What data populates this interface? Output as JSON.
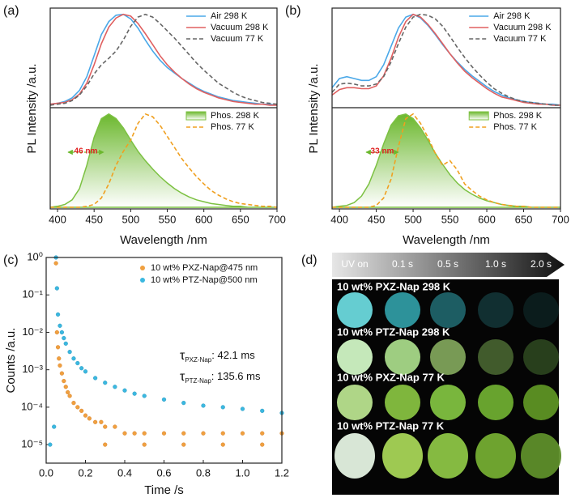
{
  "chart_data": [
    {
      "type": "spectra",
      "panel_label": "(a)",
      "xlabel": "Wavelength /nm",
      "ylabel": "PL Intensity /a.u.",
      "xlim": [
        390,
        700
      ],
      "xticks": [
        400,
        450,
        500,
        550,
        600,
        650,
        700
      ],
      "ylim": [
        0,
        1.05
      ],
      "x": [
        390,
        400,
        410,
        420,
        430,
        440,
        450,
        460,
        470,
        480,
        490,
        500,
        510,
        520,
        530,
        540,
        550,
        560,
        570,
        580,
        590,
        600,
        610,
        620,
        630,
        640,
        650,
        660,
        670,
        680,
        690,
        700
      ],
      "top": {
        "series": [
          {
            "name": "Air 298 K",
            "color": "#4aa8e8",
            "style": "solid",
            "values": [
              0.02,
              0.03,
              0.05,
              0.09,
              0.17,
              0.32,
              0.55,
              0.78,
              0.92,
              0.99,
              1.0,
              0.95,
              0.85,
              0.72,
              0.6,
              0.5,
              0.42,
              0.36,
              0.3,
              0.25,
              0.2,
              0.16,
              0.13,
              0.1,
              0.08,
              0.06,
              0.05,
              0.04,
              0.03,
              0.02,
              0.02,
              0.01
            ]
          },
          {
            "name": "Vacuum 298 K",
            "color": "#e06060",
            "style": "solid",
            "values": [
              0.02,
              0.03,
              0.04,
              0.07,
              0.13,
              0.25,
              0.45,
              0.68,
              0.86,
              0.96,
              1.0,
              0.98,
              0.9,
              0.79,
              0.67,
              0.55,
              0.45,
              0.37,
              0.3,
              0.24,
              0.19,
              0.15,
              0.12,
              0.09,
              0.07,
              0.05,
              0.04,
              0.03,
              0.02,
              0.02,
              0.01,
              0.01
            ]
          },
          {
            "name": "Vacuum 77 K",
            "color": "#666666",
            "style": "dashed",
            "values": [
              0.01,
              0.02,
              0.03,
              0.06,
              0.12,
              0.22,
              0.35,
              0.45,
              0.52,
              0.6,
              0.72,
              0.87,
              0.97,
              1.0,
              0.97,
              0.9,
              0.82,
              0.74,
              0.65,
              0.56,
              0.47,
              0.39,
              0.32,
              0.25,
              0.2,
              0.15,
              0.11,
              0.08,
              0.06,
              0.04,
              0.03,
              0.02
            ]
          }
        ]
      },
      "bottom": {
        "series": [
          {
            "name": "Phos. 298 K",
            "color": "#7cc142",
            "style": "fill",
            "values": [
              0,
              0.01,
              0.03,
              0.08,
              0.2,
              0.45,
              0.75,
              0.95,
              1.0,
              0.95,
              0.85,
              0.72,
              0.6,
              0.5,
              0.41,
              0.33,
              0.26,
              0.2,
              0.15,
              0.11,
              0.08,
              0.06,
              0.04,
              0.03,
              0.02,
              0.01,
              0.01,
              0,
              0,
              0,
              0,
              0
            ]
          },
          {
            "name": "Phos. 77 K",
            "color": "#f0a020",
            "style": "dashed",
            "values": [
              0,
              0,
              0,
              0,
              0,
              0.01,
              0.03,
              0.1,
              0.25,
              0.45,
              0.6,
              0.72,
              0.9,
              1.0,
              0.97,
              0.88,
              0.76,
              0.64,
              0.52,
              0.42,
              0.33,
              0.25,
              0.18,
              0.13,
              0.09,
              0.06,
              0.04,
              0.03,
              0.02,
              0.01,
              0.01,
              0
            ]
          }
        ]
      },
      "annotation": "46 nm"
    },
    {
      "type": "spectra",
      "panel_label": "(b)",
      "xlabel": "Wavelength /nm",
      "ylabel": "PL Intensity /a.u.",
      "xlim": [
        390,
        700
      ],
      "xticks": [
        400,
        450,
        500,
        550,
        600,
        650,
        700
      ],
      "ylim": [
        0,
        1.05
      ],
      "x": [
        390,
        400,
        410,
        420,
        430,
        440,
        450,
        460,
        470,
        480,
        490,
        500,
        510,
        520,
        530,
        540,
        550,
        560,
        570,
        580,
        590,
        600,
        610,
        620,
        630,
        640,
        650,
        660,
        670,
        680,
        690,
        700
      ],
      "top": {
        "series": [
          {
            "name": "Air 298 K",
            "color": "#4aa8e8",
            "style": "solid",
            "values": [
              0.2,
              0.3,
              0.32,
              0.3,
              0.28,
              0.28,
              0.32,
              0.45,
              0.65,
              0.85,
              0.97,
              1.0,
              0.96,
              0.88,
              0.78,
              0.67,
              0.57,
              0.48,
              0.4,
              0.33,
              0.27,
              0.21,
              0.16,
              0.12,
              0.09,
              0.07,
              0.05,
              0.04,
              0.03,
              0.02,
              0.02,
              0.01
            ]
          },
          {
            "name": "Vacuum 298 K",
            "color": "#e06060",
            "style": "solid",
            "values": [
              0.12,
              0.18,
              0.2,
              0.2,
              0.19,
              0.19,
              0.22,
              0.33,
              0.52,
              0.75,
              0.92,
              1.0,
              0.97,
              0.89,
              0.79,
              0.68,
              0.57,
              0.47,
              0.38,
              0.31,
              0.25,
              0.19,
              0.14,
              0.1,
              0.08,
              0.06,
              0.04,
              0.03,
              0.02,
              0.02,
              0.01,
              0.01
            ]
          },
          {
            "name": "Vacuum 77 K",
            "color": "#666666",
            "style": "dashed",
            "values": [
              0.15,
              0.24,
              0.25,
              0.24,
              0.22,
              0.22,
              0.24,
              0.32,
              0.48,
              0.68,
              0.86,
              0.97,
              1.0,
              0.99,
              0.95,
              0.87,
              0.76,
              0.64,
              0.53,
              0.43,
              0.34,
              0.26,
              0.19,
              0.14,
              0.1,
              0.07,
              0.05,
              0.04,
              0.03,
              0.02,
              0.01,
              0.01
            ]
          }
        ]
      },
      "bottom": {
        "series": [
          {
            "name": "Phos. 298 K",
            "color": "#7cc142",
            "style": "fill",
            "values": [
              0,
              0.01,
              0.02,
              0.05,
              0.12,
              0.25,
              0.45,
              0.68,
              0.88,
              0.98,
              1.0,
              0.95,
              0.85,
              0.72,
              0.58,
              0.46,
              0.35,
              0.26,
              0.19,
              0.14,
              0.1,
              0.07,
              0.05,
              0.03,
              0.02,
              0.01,
              0.01,
              0,
              0,
              0,
              0,
              0
            ]
          },
          {
            "name": "Phos. 77 K",
            "color": "#f0a020",
            "style": "dashed",
            "values": [
              0,
              0,
              0,
              0,
              0,
              0,
              0.02,
              0.1,
              0.3,
              0.65,
              0.95,
              1.0,
              0.9,
              0.75,
              0.58,
              0.45,
              0.5,
              0.4,
              0.25,
              0.18,
              0.12,
              0.08,
              0.05,
              0.03,
              0.02,
              0.01,
              0.01,
              0,
              0,
              0,
              0,
              0
            ]
          }
        ]
      },
      "annotation": "33 nm"
    },
    {
      "type": "scatter",
      "panel_label": "(c)",
      "xlabel": "Time /s",
      "ylabel": "Counts /a.u.",
      "log_y": true,
      "xlim": [
        0,
        1.2
      ],
      "xticks": [
        {
          "value": 0,
          "label": "0.0"
        },
        0.2,
        0.4,
        0.6,
        0.8,
        {
          "value": 1,
          "label": "1.0"
        },
        1.2
      ],
      "ylim": [
        3.2e-06,
        1
      ],
      "yticks": [
        {
          "value": 1,
          "label": "10⁰"
        },
        {
          "value": 0.1,
          "label": "10⁻¹"
        },
        {
          "value": 0.01,
          "label": "10⁻²"
        },
        {
          "value": 0.001,
          "label": "10⁻³"
        },
        {
          "value": 0.0001,
          "label": "10⁻⁴"
        },
        {
          "value": 1e-05,
          "label": "10⁻⁵"
        }
      ],
      "series": [
        {
          "name": "10 wt% PXZ-Nap@475 nm",
          "color": "#f0a040",
          "x": [
            0.05,
            0.055,
            0.06,
            0.065,
            0.07,
            0.08,
            0.09,
            0.1,
            0.11,
            0.12,
            0.14,
            0.16,
            0.18,
            0.2,
            0.22,
            0.25,
            0.28,
            0.3,
            0.35,
            0.4,
            0.45,
            0.5,
            0.6,
            0.7,
            0.8,
            0.9,
            1.0,
            1.1,
            1.2,
            0.3,
            0.5,
            0.7,
            0.9,
            1.1
          ],
          "values": [
            0.7,
            0.01,
            0.004,
            0.002,
            0.0013,
            0.0008,
            0.0005,
            0.00035,
            0.00025,
            0.0002,
            0.00013,
            0.0001,
            8e-05,
            6e-05,
            5e-05,
            4e-05,
            4e-05,
            3e-05,
            3e-05,
            2e-05,
            2e-05,
            2e-05,
            2e-05,
            2e-05,
            2e-05,
            2e-05,
            2e-05,
            2e-05,
            2e-05,
            1e-05,
            1e-05,
            1e-05,
            1e-05,
            1e-05
          ]
        },
        {
          "name": "10 wt% PTZ-Nap@500 nm",
          "color": "#3bb8e0",
          "x": [
            0.05,
            0.055,
            0.06,
            0.07,
            0.08,
            0.09,
            0.1,
            0.12,
            0.14,
            0.16,
            0.18,
            0.2,
            0.25,
            0.3,
            0.35,
            0.4,
            0.45,
            0.5,
            0.6,
            0.7,
            0.8,
            0.9,
            1.0,
            1.1,
            1.2,
            0.02,
            0.04
          ],
          "values": [
            1,
            0.15,
            0.03,
            0.015,
            0.01,
            0.007,
            0.005,
            0.003,
            0.002,
            0.0015,
            0.0011,
            0.0009,
            0.0006,
            0.00045,
            0.00035,
            0.00028,
            0.00023,
            0.0002,
            0.00016,
            0.00013,
            0.00011,
            0.0001,
            9e-05,
            8e-05,
            7e-05,
            1e-05,
            3e-05
          ]
        }
      ],
      "annotations": [
        {
          "symbol": "τ",
          "subscript": "PXZ-Nap",
          "text": ": 42.1 ms"
        },
        {
          "symbol": "τ",
          "subscript": "PTZ-Nap",
          "text": ": 135.6 ms"
        }
      ]
    }
  ],
  "image_panel": {
    "panel_label": "(d)",
    "columns": [
      "UV on",
      "0.1 s",
      "0.5 s",
      "1.0 s",
      "2.0 s"
    ],
    "rows": [
      "10 wt% PXZ-Nap 298 K",
      "10 wt% PTZ-Nap 298 K",
      "10 wt% PXZ-Nap 77 K",
      "10 wt% PTZ-Nap 77 K"
    ]
  }
}
